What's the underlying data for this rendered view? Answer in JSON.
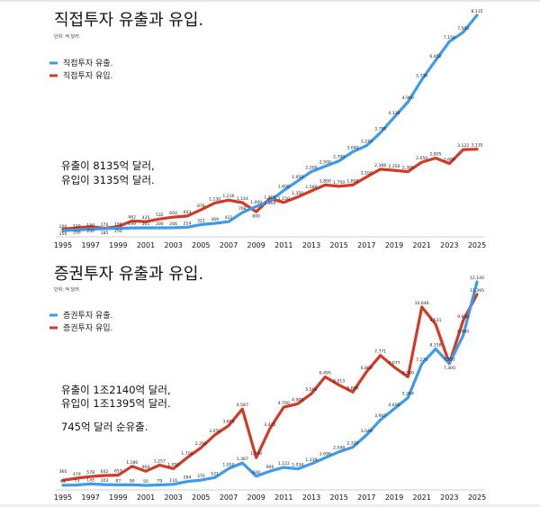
{
  "chart_data": [
    {
      "type": "line",
      "title": "직접투자 유출과 유입.",
      "subtitle": "단위: 억 달러.",
      "annotations": [
        "유출이 8135억 달러,",
        "유입이 3135억 달러."
      ],
      "x": [
        1995,
        1996,
        1997,
        1998,
        1999,
        2000,
        2001,
        2002,
        2003,
        2004,
        2005,
        2006,
        2007,
        2008,
        2009,
        2010,
        2011,
        2012,
        2013,
        2014,
        2015,
        2016,
        2017,
        2018,
        2019,
        2020,
        2021,
        2022,
        2023,
        2024,
        2025
      ],
      "xticks": [
        "1995",
        "1997",
        "1999",
        "2001",
        "2003",
        "2005",
        "2007",
        "2009",
        "2011",
        "2013",
        "2015",
        "2017",
        "2019",
        "2021",
        "2023",
        "2025"
      ],
      "ylim": [
        0,
        8200
      ],
      "grid": false,
      "legend_placement": "top-left",
      "series": [
        {
          "name": "직접투자 유출.",
          "color": "#3d9be9",
          "values": [
            100,
            120,
            150,
            170,
            180,
            199,
            201,
            200,
            206,
            224,
            322,
            369,
            431,
            768,
            1000,
            1200,
            1600,
            1950,
            2300,
            2500,
            2700,
            3040,
            3270,
            3750,
            4330,
            4900,
            5730,
            6450,
            7150,
            7500,
            8135
          ]
        },
        {
          "name": "직접투자 유입.",
          "color": "#d33a26",
          "values": [
            156,
            200,
            250,
            185,
            250,
            462,
            435,
            532,
            600,
            643,
            878,
            1130,
            1236,
            1144,
            800,
            1300,
            1150,
            1350,
            1580,
            1800,
            1750,
            1800,
            2100,
            2388,
            2350,
            2300,
            2650,
            2805,
            2600,
            3122,
            3135
          ]
        }
      ]
    },
    {
      "type": "line",
      "title": "증권투자 유출과 유입.",
      "subtitle": "단위: 억 달러.",
      "annotations": [
        "유출이 1조2140억 달러,",
        "유입이 1조1395억 달러.",
        "745억 달러 순유출."
      ],
      "x": [
        1995,
        1996,
        1997,
        1998,
        1999,
        2000,
        2001,
        2002,
        2003,
        2004,
        2005,
        2006,
        2007,
        2008,
        2009,
        2010,
        2011,
        2012,
        2013,
        2014,
        2015,
        2016,
        2017,
        2018,
        2019,
        2020,
        2021,
        2022,
        2023,
        2024,
        2025
      ],
      "xticks": [
        "1995",
        "1997",
        "1999",
        "2001",
        "2003",
        "2005",
        "2007",
        "2009",
        "2011",
        "2013",
        "2015",
        "2017",
        "2019",
        "2021",
        "2023",
        "2025"
      ],
      "ylim": [
        0,
        12300
      ],
      "grid": false,
      "legend_placement": "top-left",
      "series": [
        {
          "name": "증권투자 유출.",
          "color": "#3d9be9",
          "values": [
            64,
            73,
            145,
            103,
            87,
            90,
            55,
            79,
            116,
            284,
            370,
            521,
            1050,
            1387,
            600,
            900,
            1122,
            1034,
            1339,
            1690,
            2048,
            2320,
            3049,
            3947,
            4600,
            5264,
            7275,
            8158,
            7292,
            8960,
            12140
          ]
        },
        {
          "name": "증권투자 유입.",
          "color": "#d33a26",
          "values": [
            360,
            479,
            578,
            642,
            657,
            1186,
            900,
            1257,
            1050,
            1700,
            2290,
            3050,
            3600,
            4587,
            1700,
            3435,
            4700,
            4900,
            5500,
            6495,
            6013,
            5600,
            6800,
            7771,
            7077,
            6500,
            10646,
            9631,
            7300,
            9850,
            11395
          ]
        }
      ]
    }
  ]
}
